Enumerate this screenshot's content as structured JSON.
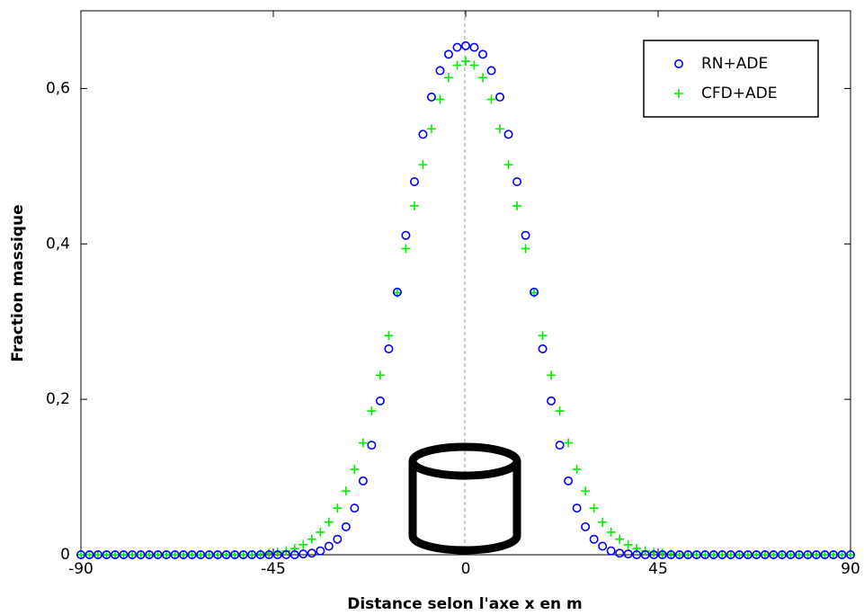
{
  "chart_data": {
    "type": "scatter",
    "xlabel": "Distance selon l'axe x en m",
    "ylabel": "Fraction massique",
    "x": [
      -90,
      -88,
      -86,
      -84,
      -82,
      -80,
      -78,
      -76,
      -74,
      -72,
      -70,
      -68,
      -66,
      -64,
      -62,
      -60,
      -58,
      -56,
      -54,
      -52,
      -50,
      -48,
      -46,
      -44,
      -42,
      -40,
      -38,
      -36,
      -34,
      -32,
      -30,
      -28,
      -26,
      -24,
      -22,
      -20,
      -18,
      -16,
      -14,
      -12,
      -10,
      -8,
      -6,
      -4,
      -2,
      0,
      2,
      4,
      6,
      8,
      10,
      12,
      14,
      16,
      18,
      20,
      22,
      24,
      26,
      28,
      30,
      32,
      34,
      36,
      38,
      40,
      42,
      44,
      46,
      48,
      50,
      52,
      54,
      56,
      58,
      60,
      62,
      64,
      66,
      68,
      70,
      72,
      74,
      76,
      78,
      80,
      82,
      84,
      86,
      88,
      90
    ],
    "series": [
      {
        "name": "RN+ADE",
        "color": "#0000ff",
        "marker": "circle",
        "values": [
          0,
          0,
          0,
          0,
          0,
          0,
          0,
          0,
          0,
          0,
          0,
          0,
          0,
          0,
          0,
          0,
          0,
          0,
          0,
          0,
          0,
          0,
          0,
          0,
          0,
          0,
          0.001,
          0.002,
          0.005,
          0.011,
          0.02,
          0.036,
          0.06,
          0.095,
          0.141,
          0.198,
          0.265,
          0.338,
          0.411,
          0.48,
          0.541,
          0.589,
          0.623,
          0.644,
          0.653,
          0.655,
          0.653,
          0.644,
          0.623,
          0.589,
          0.541,
          0.48,
          0.411,
          0.338,
          0.265,
          0.198,
          0.141,
          0.095,
          0.06,
          0.036,
          0.02,
          0.011,
          0.005,
          0.002,
          0.001,
          0,
          0,
          0,
          0,
          0,
          0,
          0,
          0,
          0,
          0,
          0,
          0,
          0,
          0,
          0,
          0,
          0,
          0,
          0,
          0,
          0,
          0,
          0,
          0,
          0,
          0
        ]
      },
      {
        "name": "CFD+ADE",
        "color": "#00ee00",
        "marker": "plus",
        "values": [
          0,
          0,
          0,
          0,
          0,
          0,
          0,
          0,
          0,
          0,
          0,
          0,
          0,
          0,
          0,
          0,
          0,
          0,
          0,
          0,
          0,
          0.001,
          0.002,
          0.003,
          0.005,
          0.008,
          0.013,
          0.02,
          0.029,
          0.042,
          0.06,
          0.082,
          0.11,
          0.144,
          0.185,
          0.231,
          0.282,
          0.337,
          0.394,
          0.449,
          0.502,
          0.548,
          0.586,
          0.614,
          0.63,
          0.635,
          0.63,
          0.614,
          0.586,
          0.548,
          0.502,
          0.449,
          0.394,
          0.337,
          0.282,
          0.231,
          0.185,
          0.144,
          0.11,
          0.082,
          0.06,
          0.042,
          0.029,
          0.02,
          0.013,
          0.008,
          0.005,
          0.003,
          0.002,
          0.001,
          0,
          0,
          0,
          0,
          0,
          0,
          0,
          0,
          0,
          0,
          0,
          0,
          0,
          0,
          0,
          0,
          0,
          0,
          0,
          0,
          0
        ]
      }
    ],
    "xlim": [
      -90,
      90
    ],
    "xticks": [
      -90,
      -45,
      0,
      45,
      90
    ],
    "ylim": [
      0,
      0.7
    ],
    "yticks": [
      0,
      {
        "value": 0.2,
        "label": "0,2"
      },
      {
        "value": 0.4,
        "label": "0,4"
      },
      {
        "value": 0.6,
        "label": "0,6"
      }
    ],
    "grid": false,
    "legend": "upper right"
  }
}
